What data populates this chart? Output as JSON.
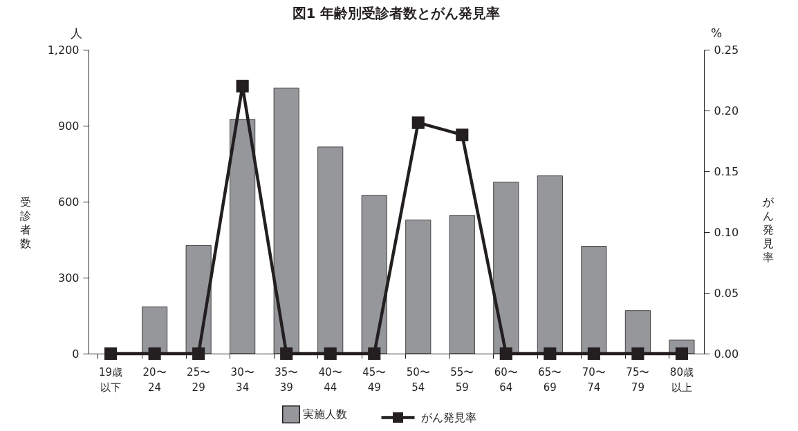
{
  "chart_data": {
    "type": "bar",
    "title": "図1 年齢別受診者数とがん発見率",
    "ylabel": "受診者数",
    "y2label": "がん発見率",
    "annotations": [
      "人",
      "%"
    ],
    "categories": [
      "19歳以下",
      "20〜24",
      "25〜29",
      "30〜34",
      "35〜39",
      "40〜44",
      "45〜49",
      "50〜54",
      "55〜59",
      "60〜64",
      "65〜69",
      "70〜74",
      "75〜79",
      "80歳以上"
    ],
    "series": [
      {
        "name": "実施人数",
        "color": "#96979b",
        "values": [
          0,
          185,
          427,
          925,
          1049,
          816,
          625,
          528,
          546,
          677,
          702,
          424,
          170,
          54
        ]
      },
      {
        "name": "がん発見率",
        "type": "line",
        "axis": "y2",
        "color": "#231f20",
        "values": [
          0,
          0,
          0,
          0.22,
          0,
          0,
          0,
          0.19,
          0.18,
          0,
          0,
          0,
          0,
          0
        ]
      }
    ],
    "ylim": [
      0,
      1200
    ],
    "yticks": [
      0,
      300,
      600,
      900,
      {
        "value": 1200,
        "label": "1,200"
      }
    ],
    "y2lim": [
      0,
      0.25
    ],
    "y2ticks": [
      {
        "value": 0,
        "label": "0.00"
      },
      0.05,
      {
        "value": 0.1,
        "label": "0.10"
      },
      0.15,
      {
        "value": 0.2,
        "label": "0.20"
      },
      0.25
    ],
    "legend": "bottom",
    "grid": false,
    "marker": "square",
    "line_style": "solid"
  }
}
